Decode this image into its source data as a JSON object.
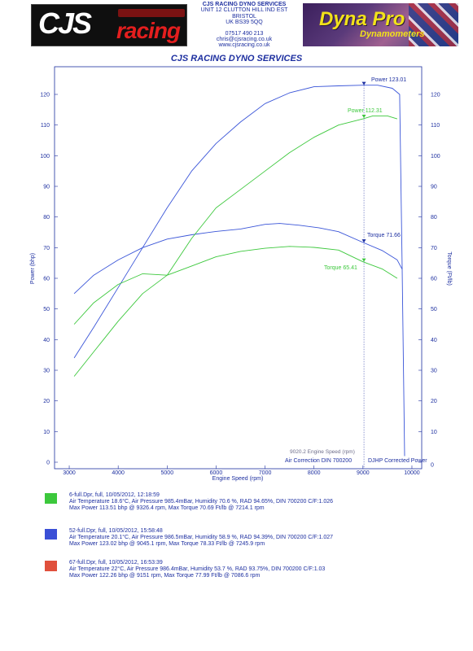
{
  "header": {
    "logo_left": {
      "text_main": "CJS",
      "text_sub": "racing"
    },
    "company": {
      "name": "CJS RACING DYNO SERVICES",
      "address1": "UNIT 12 CLUTTON HILL IND EST",
      "address2": "BRISTOL",
      "address3": "UK BS39 5QQ",
      "phone": "07517 490 213",
      "email": "chris@cjsracing.co.uk",
      "web": "www.cjsracing.co.uk"
    },
    "logo_right": {
      "text_main": "Dyna Pro",
      "text_sub": "Dynamometers"
    }
  },
  "chart_data": {
    "type": "line",
    "title": "CJS RACING DYNO SERVICES",
    "xlabel": "Engine Speed (rpm)",
    "ylabel_left": "Power (bhp)",
    "ylabel_right": "Torque (Ft/lb)",
    "xlim": [
      2700,
      10200
    ],
    "ylim": [
      0,
      127
    ],
    "x_ticks": [
      3000,
      4000,
      5000,
      6000,
      7000,
      8000,
      9000,
      10000
    ],
    "y_ticks": [
      0,
      10,
      20,
      30,
      40,
      50,
      60,
      70,
      80,
      90,
      100,
      110,
      120
    ],
    "colors": {
      "axis": "#1d2fa0",
      "blue": "#3a55d8",
      "green": "#3cc83c",
      "red": "#e0503c"
    },
    "series": [
      {
        "name": "52-full.Dpr Power",
        "color": "#3a55d8",
        "x": [
          3100,
          3500,
          4000,
          4500,
          5000,
          5500,
          6000,
          6500,
          7000,
          7500,
          8000,
          8500,
          9000,
          9300,
          9600,
          9750,
          9800,
          9850
        ],
        "y": [
          34,
          44,
          57,
          70,
          83,
          95,
          104,
          111,
          117,
          120.5,
          122.5,
          122.8,
          123,
          123,
          122,
          120,
          65,
          2
        ]
      },
      {
        "name": "52-full.Dpr Torque",
        "color": "#3a55d8",
        "x": [
          3100,
          3500,
          4000,
          4500,
          5000,
          5500,
          6000,
          6500,
          7000,
          7300,
          7700,
          8100,
          8500,
          9000,
          9400,
          9700,
          9800
        ],
        "y": [
          55,
          61,
          66,
          70,
          72.8,
          74.2,
          75.3,
          76.1,
          77.6,
          77.9,
          77.3,
          76.5,
          75.2,
          71.7,
          69,
          66,
          63
        ]
      },
      {
        "name": "6-full.Dpr Power",
        "color": "#3cc83c",
        "x": [
          3100,
          3500,
          4000,
          4500,
          5000,
          5500,
          6000,
          6500,
          7000,
          7500,
          8000,
          8500,
          9000,
          9200,
          9500,
          9700
        ],
        "y": [
          28,
          36,
          46,
          55,
          61,
          73,
          83,
          89,
          95,
          101,
          106,
          110,
          112,
          113,
          113,
          112
        ]
      },
      {
        "name": "6-full.Dpr Torque",
        "color": "#3cc83c",
        "x": [
          3100,
          3500,
          4000,
          4500,
          5000,
          5500,
          6000,
          6500,
          7000,
          7500,
          8000,
          8500,
          9000,
          9400,
          9700
        ],
        "y": [
          45,
          52,
          58,
          61.5,
          61,
          64,
          67,
          68.8,
          69.8,
          70.4,
          70.1,
          69.2,
          65.4,
          63,
          60
        ]
      }
    ],
    "annotations": {
      "power_blue": "Power 123.01",
      "power_green": "Power 112.31",
      "torque_blue": "Torque 71.66",
      "torque_green": "Torque 65.41",
      "engine_speed": "9020.2 Engine Speed (rpm)",
      "air_correction": "Air Correction DIN 700200",
      "djhp": "DJHP Corrected Power"
    }
  },
  "runs": [
    {
      "color": "#3cc83c",
      "title": "6-full.Dpr,   full,   10/05/2012,   12:18:59",
      "line1": "Air Temperature 18.6°C, Air Pressure 985.4mBar, Humidity 70.6 %, RAD 94.65%,   DIN 700200  C/F:1.026",
      "line2": "Max Power 113.51 bhp @ 9326.4 rpm, Max Torque 70.69 Ft/lb @ 7214.1 rpm"
    },
    {
      "color": "#3a4fd6",
      "title": "52-full.Dpr,   full,   10/05/2012,   15:58:48",
      "line1": "Air Temperature 20.1°C, Air Pressure 986.5mBar, Humidity 58.9 %, RAD 94.39%,   DIN 700200  C/F:1.027",
      "line2": "Max Power 123.02 bhp @ 9045.1 rpm, Max Torque 78.33 Ft/lb @ 7245.9 rpm"
    },
    {
      "color": "#e0503c",
      "title": "67-full.Dpr,   full,   10/05/2012,   16:53:39",
      "line1": "Air Temperature 22°C, Air Pressure 986.4mBar, Humidity 53.7 %, RAD 93.75%,   DIN 700200  C/F:1.03",
      "line2": "Max Power 122.26 bhp @ 9151 rpm, Max Torque 77.99 Ft/lb @ 7086.6 rpm"
    }
  ]
}
